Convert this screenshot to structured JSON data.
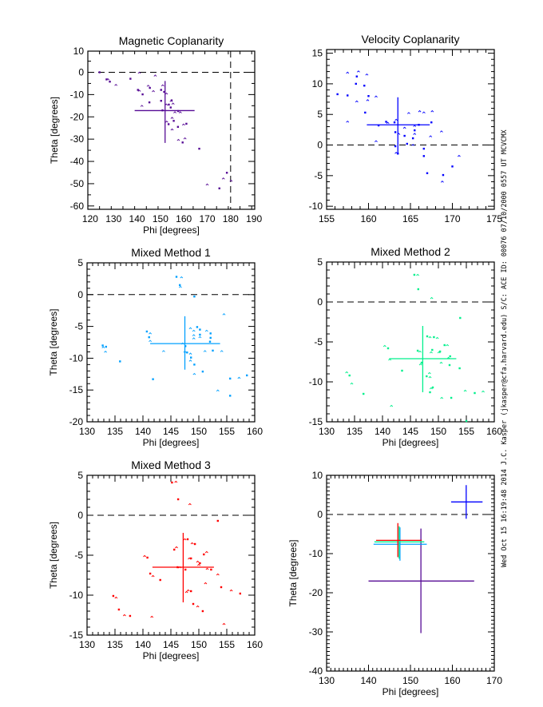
{
  "side_note": "Wed Oct 15 16:19:48 2014   J.C. Kasper (jkasper@cfa.harvard.edu)   S/C: ACE ID: 00076 07/10/2000   0557 UT MCVCMX",
  "colors": {
    "magnetic": "#560b95",
    "velocity": "#0000ff",
    "mixed1": "#00a0ff",
    "mixed2": "#00f08c",
    "mixed3": "#ff0000",
    "reference": "#000000"
  },
  "chart_data": [
    {
      "type": "scatter",
      "title": "Magnetic Coplanarity",
      "xlabel": "Phi [degrees]",
      "ylabel": "Theta [degrees]",
      "xlim": [
        119,
        190.3
      ],
      "ylim": [
        -61.5,
        9.5
      ],
      "xticks": [
        120,
        130,
        140,
        150,
        160,
        170,
        180,
        190
      ],
      "yticks": [
        10,
        0,
        -10,
        -20,
        -30,
        -40,
        -50,
        -60
      ],
      "xminor": 2,
      "yminor": 2,
      "color_key": "magnetic",
      "ref_lines": {
        "y": [
          0
        ],
        "x": [
          180
        ]
      },
      "points": [
        [
          124,
          0
        ],
        [
          141,
          -0.5
        ],
        [
          127,
          -3.2
        ],
        [
          127.6,
          -3.5
        ],
        [
          128.4,
          -4.2
        ],
        [
          131,
          -6
        ],
        [
          137.2,
          -2.9
        ],
        [
          147.8,
          -1.8
        ],
        [
          140.4,
          -7.9
        ],
        [
          141,
          -8.6
        ],
        [
          142.4,
          -9.9
        ],
        [
          144.8,
          -6.4
        ],
        [
          145.5,
          -7
        ],
        [
          147,
          -8.8
        ],
        [
          150.3,
          -7.9
        ],
        [
          151,
          -6.2
        ],
        [
          151.6,
          -8.8
        ],
        [
          152.6,
          -9.9
        ],
        [
          145.3,
          -13.5
        ],
        [
          142.1,
          -15.4
        ],
        [
          150.3,
          -12.8
        ],
        [
          152.5,
          -14.8
        ],
        [
          153.6,
          -14.5
        ],
        [
          154.6,
          -13.2
        ],
        [
          154.8,
          -12.6
        ],
        [
          155.4,
          -14.4
        ],
        [
          154.4,
          -15.8
        ],
        [
          156.2,
          -18.3
        ],
        [
          157.6,
          -17.4
        ],
        [
          158.5,
          -18.3
        ],
        [
          150.9,
          -17.1
        ],
        [
          155,
          -20.8
        ],
        [
          155.7,
          -21.8
        ],
        [
          152.7,
          -22.5
        ],
        [
          153.5,
          -23.3
        ],
        [
          155,
          -26
        ],
        [
          157.5,
          -24.5
        ],
        [
          159.9,
          -23.8
        ],
        [
          161.1,
          -23.1
        ],
        [
          157.7,
          -30.7
        ],
        [
          159.5,
          -31.5
        ],
        [
          160.5,
          -30
        ],
        [
          166.6,
          -34.3
        ],
        [
          170,
          -50.7
        ],
        [
          175.2,
          -52.1
        ],
        [
          176.9,
          -48
        ],
        [
          178.4,
          -45.1
        ],
        [
          180.2,
          -49
        ]
      ],
      "crosshair": {
        "center": [
          152,
          -17.2
        ],
        "x_range": [
          139,
          164.6
        ],
        "y_range": [
          -3.9,
          -31.7
        ]
      }
    },
    {
      "type": "scatter",
      "title": "Velocity Coplanarity",
      "xlabel": "",
      "ylabel": "",
      "xlim": [
        155,
        175
      ],
      "ylim": [
        -10.5,
        15.6
      ],
      "xticks": [
        155,
        160,
        165,
        170,
        175
      ],
      "yticks": [
        15,
        10,
        5,
        0,
        -5,
        -10
      ],
      "xminor": 5,
      "yminor": 5,
      "color_key": "velocity",
      "ref_lines": {
        "y": [
          0
        ],
        "x": []
      },
      "points": [
        [
          156.3,
          8.3
        ],
        [
          157.5,
          11.7
        ],
        [
          157.5,
          8.1
        ],
        [
          157.5,
          3.7
        ],
        [
          158.6,
          11.2
        ],
        [
          158.8,
          11.9
        ],
        [
          158.5,
          10
        ],
        [
          158.6,
          7
        ],
        [
          159.5,
          9.7
        ],
        [
          159.8,
          11.4
        ],
        [
          160,
          8
        ],
        [
          159.9,
          7.2
        ],
        [
          159.6,
          5.3
        ],
        [
          160.9,
          7.8
        ],
        [
          161.2,
          3.2
        ],
        [
          160.9,
          0.5
        ],
        [
          162.1,
          3.8
        ],
        [
          162.3,
          3.5
        ],
        [
          163.1,
          3.7
        ],
        [
          163.3,
          4
        ],
        [
          163.2,
          2.1
        ],
        [
          163.6,
          1.7
        ],
        [
          163.2,
          -0.2
        ],
        [
          163.3,
          -1.4
        ],
        [
          163.5,
          -1.4
        ],
        [
          164.3,
          2.7
        ],
        [
          164.3,
          1.5
        ],
        [
          164.8,
          5.1
        ],
        [
          164.6,
          0.2
        ],
        [
          165.3,
          -0.1
        ],
        [
          165.3,
          1.1
        ],
        [
          165.5,
          3
        ],
        [
          165.5,
          2.4
        ],
        [
          165.5,
          1.7
        ],
        [
          166,
          3.3
        ],
        [
          166.1,
          5.4
        ],
        [
          166.6,
          -0.6
        ],
        [
          166.6,
          5.2
        ],
        [
          166.6,
          -1.8
        ],
        [
          167.4,
          1.3
        ],
        [
          167.5,
          3.7
        ],
        [
          167.6,
          5.4
        ],
        [
          167,
          -4.6
        ],
        [
          168.7,
          2.1
        ],
        [
          168.9,
          -4.9
        ],
        [
          168.8,
          -6.1
        ],
        [
          170,
          -3.5
        ],
        [
          170.8,
          -1.9
        ]
      ],
      "crosshair": {
        "center": [
          163.5,
          3.3
        ],
        "x_range": [
          159.8,
          167.3
        ],
        "y_range": [
          7.8,
          -1.4
        ]
      }
    },
    {
      "type": "scatter",
      "title": "Mixed Method 1",
      "xlabel": "Phi [degrees]",
      "ylabel": "Theta [degrees]",
      "xlim": [
        130,
        160
      ],
      "ylim": [
        -20,
        5
      ],
      "xticks": [
        130,
        135,
        140,
        145,
        150,
        155,
        160
      ],
      "yticks": [
        5,
        0,
        -5,
        -10,
        -15,
        -20
      ],
      "xminor": 5,
      "yminor": 5,
      "color_key": "mixed1",
      "ref_lines": {
        "y": [
          0
        ],
        "x": []
      },
      "points": [
        [
          146,
          2.8
        ],
        [
          146.9,
          2.6
        ],
        [
          146.6,
          1.5
        ],
        [
          146.7,
          1.1
        ],
        [
          149.2,
          -0.3
        ],
        [
          154.5,
          -3.2
        ],
        [
          140.7,
          -5.8
        ],
        [
          141.3,
          -6.2
        ],
        [
          141.1,
          -6.7
        ],
        [
          141.3,
          -7.4
        ],
        [
          132.8,
          -8
        ],
        [
          132.9,
          -8.4
        ],
        [
          133.4,
          -8.2
        ],
        [
          133.3,
          -9.1
        ],
        [
          135.9,
          -10.5
        ],
        [
          143.7,
          -9
        ],
        [
          141.8,
          -13.3
        ],
        [
          148.5,
          -5.4
        ],
        [
          149.7,
          -5.1
        ],
        [
          149.1,
          -5.8
        ],
        [
          150.2,
          -5.5
        ],
        [
          151.4,
          -5.8
        ],
        [
          152.1,
          -6.1
        ],
        [
          149.1,
          -6.5
        ],
        [
          150.2,
          -6.3
        ],
        [
          150.2,
          -6.8
        ],
        [
          152.1,
          -6.8
        ],
        [
          149.1,
          -7
        ],
        [
          152,
          -7.4
        ],
        [
          147.1,
          -7.8
        ],
        [
          147.6,
          -8.1
        ],
        [
          147.5,
          -9.1
        ],
        [
          147.9,
          -9.1
        ],
        [
          148.5,
          -9.4
        ],
        [
          148.6,
          -9.9
        ],
        [
          148.5,
          -10.5
        ],
        [
          149.2,
          -11
        ],
        [
          149.2,
          -12.6
        ],
        [
          150.7,
          -12.1
        ],
        [
          151.1,
          -9
        ],
        [
          152.5,
          -8.8
        ],
        [
          154.1,
          -9
        ],
        [
          155.6,
          -13.2
        ],
        [
          157.2,
          -13.2
        ],
        [
          158.6,
          -12.7
        ],
        [
          153.4,
          -15.2
        ],
        [
          155.6,
          -15.9
        ]
      ],
      "crosshair": {
        "center": [
          147.5,
          -7.7
        ],
        "x_range": [
          141.3,
          153.8
        ],
        "y_range": [
          -3.4,
          -11.8
        ]
      }
    },
    {
      "type": "scatter",
      "title": "Mixed Method 2",
      "xlabel": "Phi [degrees]",
      "ylabel": "",
      "xlim": [
        130,
        160
      ],
      "ylim": [
        -15,
        5
      ],
      "xticks": [
        130,
        135,
        140,
        145,
        150,
        155,
        160
      ],
      "yticks": [
        5,
        0,
        -5,
        -10,
        -15
      ],
      "xminor": 5,
      "yminor": 5,
      "color_key": "mixed2",
      "ref_lines": {
        "y": [
          0
        ],
        "x": []
      },
      "points": [
        [
          145.7,
          3.4
        ],
        [
          146.3,
          3.3
        ],
        [
          146.4,
          1.6
        ],
        [
          148.8,
          0.4
        ],
        [
          153.9,
          -2
        ],
        [
          140.4,
          -5.6
        ],
        [
          141,
          -5.8
        ],
        [
          141.3,
          -7.3
        ],
        [
          143.5,
          -8.6
        ],
        [
          133.6,
          -8.9
        ],
        [
          134.1,
          -9.2
        ],
        [
          134.5,
          -10.3
        ],
        [
          136.6,
          -11.5
        ],
        [
          141.6,
          -13.1
        ],
        [
          146.3,
          -6.1
        ],
        [
          146.7,
          -6.3
        ],
        [
          148,
          -4.3
        ],
        [
          148.5,
          -4.5
        ],
        [
          149.2,
          -4.4
        ],
        [
          149.8,
          -4.6
        ],
        [
          148.9,
          -6
        ],
        [
          148.7,
          -6.4
        ],
        [
          150.3,
          -6.2
        ],
        [
          150.1,
          -6.4
        ],
        [
          151.1,
          -5.4
        ],
        [
          151.6,
          -5.5
        ],
        [
          152.1,
          -6.8
        ],
        [
          151.8,
          -7.1
        ],
        [
          152,
          -7.9
        ],
        [
          150.5,
          -7.7
        ],
        [
          147,
          -7.6
        ],
        [
          146.8,
          -7.9
        ],
        [
          153.8,
          -8.3
        ],
        [
          148.4,
          -9
        ],
        [
          147.9,
          -9.3
        ],
        [
          148.5,
          -9.5
        ],
        [
          149,
          -10.7
        ],
        [
          148.7,
          -10.9
        ],
        [
          148.5,
          -11.3
        ],
        [
          150.6,
          -12.1
        ],
        [
          152.3,
          -12
        ],
        [
          154.8,
          -11.2
        ],
        [
          156.5,
          -11.4
        ],
        [
          158,
          -11.3
        ],
        [
          155,
          -14.9
        ]
      ],
      "crosshair": {
        "center": [
          147.2,
          -7.1
        ],
        "x_range": [
          141.2,
          153.2
        ],
        "y_range": [
          -3,
          -11.3
        ]
      }
    },
    {
      "type": "scatter",
      "title": "Mixed Method 3",
      "xlabel": "Phi [degrees]",
      "ylabel": "Theta [degrees]",
      "xlim": [
        130,
        160
      ],
      "ylim": [
        -15,
        5
      ],
      "xticks": [
        130,
        135,
        140,
        145,
        150,
        155,
        160
      ],
      "yticks": [
        5,
        0,
        -5,
        -10,
        -15
      ],
      "xminor": 5,
      "yminor": 5,
      "color_key": "mixed3",
      "ref_lines": {
        "y": [
          0
        ],
        "x": []
      },
      "points": [
        [
          145.2,
          4.1
        ],
        [
          145.9,
          4.1
        ],
        [
          146.3,
          2
        ],
        [
          148.4,
          1.3
        ],
        [
          153.4,
          -0.7
        ],
        [
          147.5,
          -3.1
        ],
        [
          148,
          -3
        ],
        [
          148.8,
          -3.6
        ],
        [
          149.3,
          -3.6
        ],
        [
          146,
          -4.1
        ],
        [
          145.6,
          -4.3
        ],
        [
          151.4,
          -4.7
        ],
        [
          150.9,
          -4.9
        ],
        [
          140.3,
          -5.2
        ],
        [
          140.8,
          -5.3
        ],
        [
          148.3,
          -5.5
        ],
        [
          148.6,
          -5.4
        ],
        [
          149.8,
          -5.9
        ],
        [
          150.2,
          -6
        ],
        [
          150,
          -6.3
        ],
        [
          146.2,
          -6.5
        ],
        [
          146.6,
          -6.6
        ],
        [
          147.6,
          -6.8
        ],
        [
          151.5,
          -6.8
        ],
        [
          152.2,
          -6.8
        ],
        [
          153.4,
          -7.5
        ],
        [
          141.3,
          -7.3
        ],
        [
          141.8,
          -7.7
        ],
        [
          143.1,
          -8.1
        ],
        [
          151.2,
          -8.6
        ],
        [
          154,
          -9
        ],
        [
          155.8,
          -9.5
        ],
        [
          157.4,
          -9.8
        ],
        [
          148.1,
          -9.5
        ],
        [
          148.6,
          -9.5
        ],
        [
          147.8,
          -9.7
        ],
        [
          134.7,
          -10.1
        ],
        [
          135.2,
          -10.4
        ],
        [
          135.7,
          -11.8
        ],
        [
          136.7,
          -12.6
        ],
        [
          137.7,
          -12.6
        ],
        [
          141.6,
          -12.8
        ],
        [
          149,
          -11.1
        ],
        [
          149.8,
          -11.5
        ],
        [
          150.7,
          -12
        ],
        [
          154.5,
          -13.7
        ]
      ],
      "crosshair": {
        "center": [
          147.2,
          -6.5
        ],
        "x_range": [
          141.7,
          152.7
        ],
        "y_range": [
          -2.2,
          -10.9
        ]
      }
    },
    {
      "type": "scatter",
      "title": "",
      "xlabel": "Phi [degrees]",
      "ylabel": "Theta [degrees]",
      "xlim": [
        130,
        170
      ],
      "ylim": [
        -40,
        10
      ],
      "xticks": [
        130,
        140,
        150,
        160,
        170
      ],
      "yticks": [
        10,
        0,
        -10,
        -20,
        -30,
        -40
      ],
      "xminor": 10,
      "yminor": 10,
      "ref_lines": {
        "y": [
          0
        ],
        "x": []
      },
      "points": [],
      "crosshairs": [
        {
          "color_key": "magnetic",
          "center": [
            152.5,
            -17
          ],
          "x_range": [
            140,
            165.2
          ],
          "y_range": [
            -3.6,
            -30.3
          ]
        },
        {
          "color_key": "velocity",
          "center": [
            163.3,
            3.2
          ],
          "x_range": [
            159.7,
            167.2
          ],
          "y_range": [
            7.5,
            -1.1
          ]
        },
        {
          "color_key": "mixed1",
          "center": [
            147.5,
            -7.6
          ],
          "x_range": [
            141.2,
            153.9
          ],
          "y_range": [
            -3.3,
            -11.8
          ]
        },
        {
          "color_key": "mixed2",
          "center": [
            147.3,
            -7
          ],
          "x_range": [
            141.4,
            153.3
          ],
          "y_range": [
            -3,
            -11.3
          ]
        },
        {
          "color_key": "mixed3",
          "center": [
            147,
            -6.6
          ],
          "x_range": [
            141.8,
            152.7
          ],
          "y_range": [
            -2.2,
            -10.9
          ]
        }
      ]
    }
  ]
}
